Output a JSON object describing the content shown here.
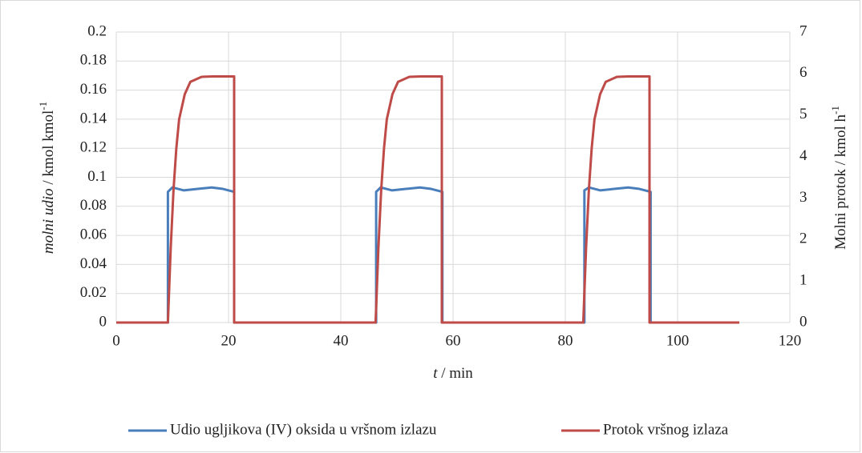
{
  "chart_data": {
    "type": "line",
    "xlabel": {
      "italic": "t",
      "rest": " / min"
    },
    "ylabel": {
      "italic": "molni udio",
      "rest": " / kmol kmol",
      "sup": "-1"
    },
    "y2label": {
      "rest": "Molni protok  / kmol h",
      "sup": "-1"
    },
    "xlim": [
      0,
      120
    ],
    "xticks": [
      0,
      20,
      40,
      60,
      80,
      100,
      120
    ],
    "ylim": [
      0,
      0.2
    ],
    "yticks": [
      0,
      0.02,
      0.04,
      0.06,
      0.08,
      0.1,
      0.12,
      0.14,
      0.16,
      0.18,
      0.2
    ],
    "y2lim": [
      0,
      7
    ],
    "y2ticks": [
      0,
      1,
      2,
      3,
      4,
      5,
      6,
      7
    ],
    "grid": true,
    "legend": "bottom",
    "series": [
      {
        "name": "Udio ugljikova (IV) oksida u vršnom izlazu",
        "color": "#4a7ebb",
        "x": [
          0,
          9.2,
          9.2,
          10,
          12,
          14.5,
          17,
          19,
          21,
          21,
          46.3,
          46.3,
          47.1,
          49.1,
          51.6,
          54.1,
          56.1,
          58.1,
          58.1,
          83.4,
          83.4,
          84.2,
          86.2,
          88.7,
          91.2,
          93.2,
          95.2,
          95.2,
          111
        ],
        "values": [
          0,
          0,
          0.09,
          0.093,
          0.091,
          0.092,
          0.093,
          0.092,
          0.09,
          0,
          0,
          0.09,
          0.093,
          0.091,
          0.092,
          0.093,
          0.092,
          0.09,
          0,
          0,
          0.091,
          0.093,
          0.091,
          0.092,
          0.093,
          0.092,
          0.09,
          0,
          0
        ]
      },
      {
        "name": "Protok vršnog izlaza",
        "color": "#be4b48",
        "axis": "y2",
        "x": [
          0,
          9.2,
          9.7,
          10.2,
          10.7,
          11.2,
          12.2,
          13.2,
          15.2,
          17.2,
          21,
          21,
          46.2,
          46.7,
          47.2,
          47.7,
          48.2,
          49.2,
          50.2,
          52.2,
          54.2,
          58,
          58,
          83.2,
          83.7,
          84.2,
          84.7,
          85.2,
          86.2,
          87.2,
          89.2,
          91.2,
          95,
          95,
          111
        ],
        "values": [
          0,
          0,
          1.8,
          3.2,
          4.2,
          4.9,
          5.5,
          5.8,
          5.92,
          5.93,
          5.93,
          0,
          0,
          1.8,
          3.2,
          4.2,
          4.9,
          5.5,
          5.8,
          5.92,
          5.93,
          5.93,
          0,
          0,
          1.8,
          3.2,
          4.2,
          4.9,
          5.5,
          5.8,
          5.92,
          5.93,
          5.93,
          0,
          0
        ]
      }
    ]
  }
}
